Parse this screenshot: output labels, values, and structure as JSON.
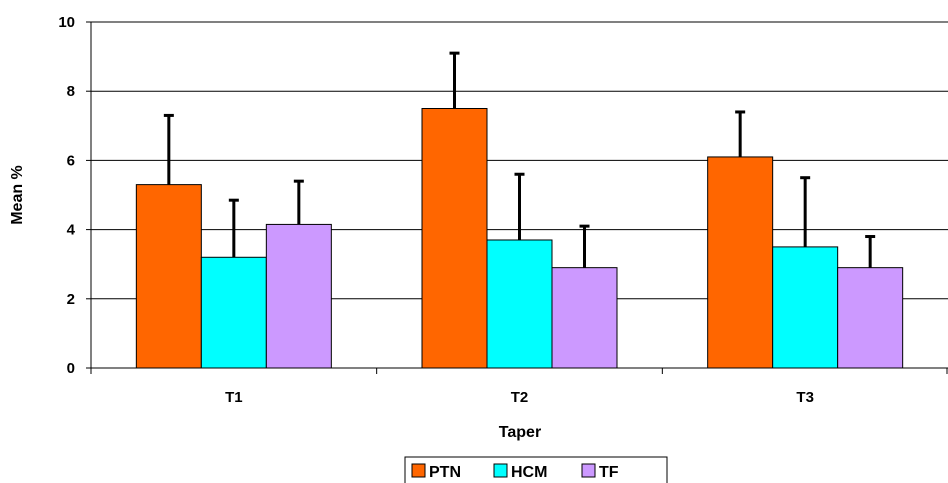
{
  "chart_data": {
    "type": "bar",
    "categories": [
      "T1",
      "T2",
      "T3"
    ],
    "series": [
      {
        "name": "PTN",
        "values": [
          5.3,
          7.5,
          6.1
        ],
        "errors": [
          2.0,
          1.6,
          1.3
        ],
        "color": "#FF6600"
      },
      {
        "name": "HCM",
        "values": [
          3.2,
          3.7,
          3.5
        ],
        "errors": [
          1.65,
          1.9,
          2.0
        ],
        "color": "#00FFFF"
      },
      {
        "name": "TF",
        "values": [
          4.15,
          2.9,
          2.9
        ],
        "errors": [
          1.25,
          1.2,
          0.9
        ],
        "color": "#CC99FF"
      }
    ],
    "xlabel": "Taper",
    "ylabel": "Mean %",
    "ylim": [
      0,
      10
    ],
    "yticks": [
      "0",
      "2",
      "4",
      "6",
      "8",
      "10"
    ],
    "grid": true,
    "legend_position": "bottom"
  }
}
